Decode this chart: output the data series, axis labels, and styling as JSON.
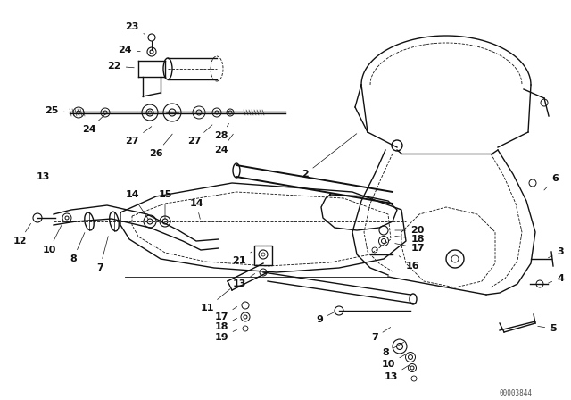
{
  "background_color": "#ffffff",
  "figure_width": 6.4,
  "figure_height": 4.48,
  "dpi": 100,
  "diagram_code": "00003844",
  "line_color": "#111111",
  "label_fontsize": 7.0,
  "label_fontsize_bold": 8.0,
  "label_color": "#111111"
}
